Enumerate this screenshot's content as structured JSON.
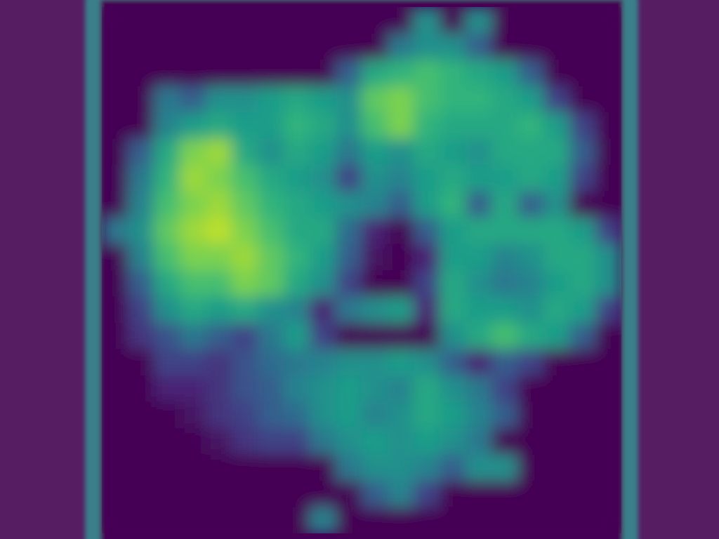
{
  "chart_data": {
    "type": "heatmap",
    "tick_labels": false,
    "color_range": [
      0,
      1
    ],
    "cells": [
      [
        0,
        0,
        0,
        0,
        0,
        0,
        0,
        0,
        0,
        0,
        0,
        0,
        0.5,
        0,
        0.5,
        0,
        0,
        0,
        0,
        0
      ],
      [
        0,
        0,
        0,
        0,
        0,
        0,
        0,
        0,
        0,
        0,
        0,
        0.4,
        0.5,
        0.5,
        0.3,
        0,
        0,
        0,
        0,
        0
      ],
      [
        0,
        0,
        0,
        0,
        0,
        0,
        0,
        0,
        0,
        0.3,
        0.6,
        0.65,
        0.7,
        0.65,
        0.6,
        0.55,
        0.3,
        0,
        0,
        0
      ],
      [
        0,
        0,
        0.4,
        0.3,
        0.5,
        0.5,
        0.55,
        0.6,
        0.55,
        0.5,
        0.75,
        0.8,
        0.7,
        0.65,
        0.65,
        0.6,
        0.55,
        0.2,
        0,
        0
      ],
      [
        0,
        0,
        0.45,
        0.55,
        0.6,
        0.55,
        0.55,
        0.65,
        0.6,
        0.5,
        0.7,
        0.8,
        0.65,
        0.6,
        0.6,
        0.6,
        0.65,
        0.55,
        0.2,
        0
      ],
      [
        0,
        0.3,
        0.6,
        0.8,
        0.85,
        0.6,
        0.5,
        0.6,
        0.55,
        0.4,
        0.55,
        0.5,
        0.6,
        0.55,
        0.5,
        0.6,
        0.6,
        0.6,
        0.3,
        0
      ],
      [
        0,
        0.4,
        0.65,
        0.85,
        0.8,
        0.7,
        0.6,
        0.55,
        0.5,
        0.2,
        0.5,
        0.45,
        0.55,
        0.6,
        0.55,
        0.55,
        0.6,
        0.55,
        0.2,
        0
      ],
      [
        0,
        0.45,
        0.7,
        0.8,
        0.85,
        0.75,
        0.65,
        0.6,
        0.55,
        0.5,
        0.45,
        0.3,
        0.55,
        0.65,
        0.3,
        0.6,
        0.3,
        0.5,
        0,
        0
      ],
      [
        0.4,
        0.5,
        0.75,
        0.85,
        0.9,
        0.8,
        0.7,
        0.6,
        0.6,
        0.35,
        0.1,
        0,
        0.3,
        0.55,
        0.6,
        0.6,
        0.6,
        0.6,
        0.55,
        0.2
      ],
      [
        0,
        0.45,
        0.7,
        0.8,
        0.8,
        0.85,
        0.75,
        0.65,
        0.55,
        0.3,
        0.05,
        0,
        0.1,
        0.55,
        0.55,
        0.45,
        0.5,
        0.6,
        0.6,
        0.5
      ],
      [
        0,
        0.3,
        0.6,
        0.7,
        0.7,
        0.8,
        0.75,
        0.6,
        0.5,
        0.2,
        0,
        0,
        0.2,
        0.6,
        0.5,
        0.4,
        0.45,
        0.55,
        0.6,
        0.5
      ],
      [
        0,
        0.2,
        0.5,
        0.6,
        0.55,
        0.6,
        0.5,
        0.45,
        0.1,
        0.4,
        0.5,
        0.55,
        0.1,
        0.6,
        0.55,
        0.55,
        0.5,
        0.6,
        0.55,
        0.2
      ],
      [
        0,
        0.15,
        0.25,
        0.4,
        0.3,
        0.2,
        0.4,
        0.55,
        0.2,
        0,
        0,
        0,
        0,
        0.5,
        0.6,
        0.7,
        0.6,
        0.55,
        0.3,
        0
      ],
      [
        0,
        0,
        0.2,
        0.2,
        0.15,
        0.25,
        0.35,
        0.4,
        0.45,
        0.5,
        0.5,
        0.55,
        0.5,
        0.3,
        0.1,
        0.3,
        0.2,
        0,
        0,
        0
      ],
      [
        0,
        0,
        0.1,
        0.1,
        0.15,
        0.25,
        0.3,
        0.45,
        0.5,
        0.55,
        0.5,
        0.45,
        0.6,
        0.5,
        0.4,
        0.2,
        0,
        0,
        0,
        0
      ],
      [
        0,
        0,
        0,
        0.05,
        0.15,
        0.2,
        0.3,
        0.35,
        0.5,
        0.55,
        0.45,
        0.5,
        0.6,
        0.55,
        0.45,
        0.3,
        0,
        0,
        0,
        0
      ],
      [
        0,
        0,
        0,
        0,
        0.05,
        0.15,
        0.2,
        0.2,
        0.4,
        0.5,
        0.55,
        0.5,
        0.55,
        0.5,
        0.4,
        0,
        0,
        0,
        0,
        0
      ],
      [
        0,
        0,
        0,
        0,
        0,
        0,
        0,
        0,
        0,
        0.4,
        0.5,
        0.5,
        0.45,
        0.3,
        0.5,
        0.5,
        0,
        0,
        0,
        0
      ],
      [
        0,
        0,
        0,
        0,
        0,
        0,
        0,
        0,
        0,
        0,
        0.3,
        0.45,
        0.2,
        0,
        0,
        0,
        0,
        0,
        0,
        0
      ],
      [
        0,
        0,
        0,
        0,
        0,
        0,
        0,
        0,
        0.45,
        0,
        0,
        0,
        0,
        0,
        0,
        0,
        0,
        0,
        0,
        0
      ]
    ]
  }
}
